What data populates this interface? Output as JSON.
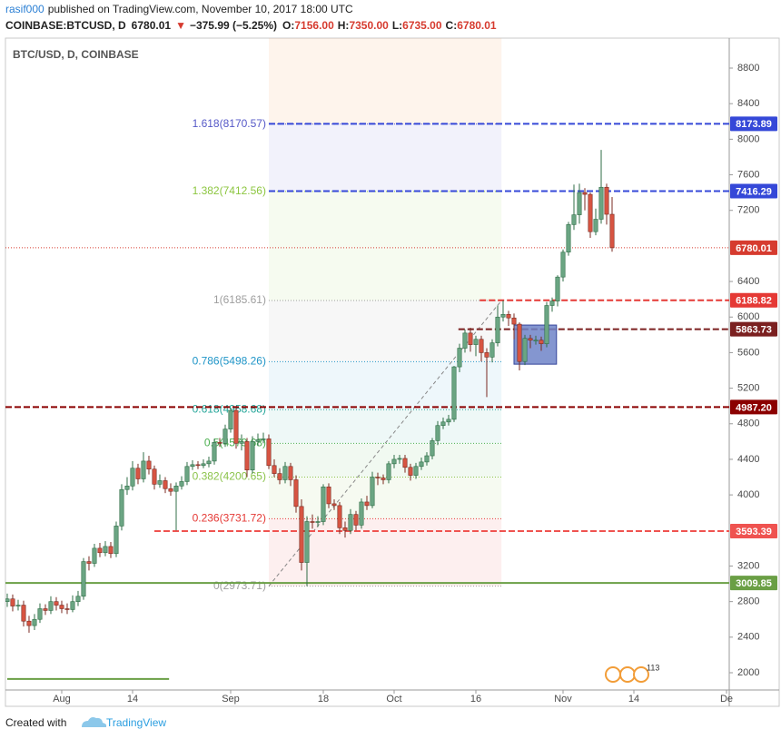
{
  "header": {
    "author": "rasif000",
    "published": "published on TradingView.com, November 10, 2017 18:00 UTC",
    "symbol": "COINBASE:BTCUSD, D",
    "last": "6780.01",
    "arrow": "▼",
    "change": "−375.99 (−5.25%)",
    "ohlc": [
      [
        "O:",
        "7156.00"
      ],
      [
        "H:",
        "7350.00"
      ],
      [
        "L:",
        "6735.00"
      ],
      [
        "C:",
        "6780.01"
      ]
    ]
  },
  "footer": {
    "created": "Created with",
    "brand": "TradingView"
  },
  "chart_data": {
    "type": "candlestick",
    "title": "BTC/USD, D, COINBASE",
    "up_color": "#6ba583",
    "down_color": "#d75442",
    "candles": {
      "open": [
        2800,
        2830,
        2750,
        2760,
        2580,
        2530,
        2600,
        2720,
        2700,
        2800,
        2760,
        2720,
        2710,
        2800,
        2860,
        3250,
        3230,
        3400,
        3350,
        3420,
        3340,
        3650,
        4060,
        4100,
        4300,
        4180,
        4380,
        4290,
        4120,
        4160,
        4070,
        4040,
        4100,
        4150,
        4320,
        4340,
        4330,
        4350,
        4380,
        4590,
        4580,
        4740,
        4950,
        4580,
        4600,
        4280,
        4600,
        4620,
        4630,
        4330,
        4240,
        4170,
        4320,
        4170,
        3870,
        3240,
        3700,
        3690,
        3700,
        4090,
        3900,
        3880,
        3630,
        3600,
        3780,
        3660,
        3920,
        3880,
        4200,
        4190,
        4170,
        4350,
        4400,
        4410,
        4310,
        4220,
        4320,
        4370,
        4440,
        4610,
        4780,
        4820,
        4850,
        5440,
        5650,
        5820,
        5690,
        5750,
        5600,
        5550,
        5710,
        6000,
        6030,
        5990,
        5920,
        5500,
        5760,
        5740,
        5740,
        5700,
        6130,
        6180,
        6450,
        6730,
        7040,
        7150,
        7400,
        7380,
        6960,
        7100,
        7460,
        7156
      ],
      "high": [
        2890,
        2880,
        2820,
        2810,
        2640,
        2660,
        2780,
        2770,
        2860,
        2850,
        2810,
        2780,
        2870,
        2920,
        3290,
        3310,
        3450,
        3460,
        3480,
        3470,
        3700,
        4120,
        4200,
        4380,
        4350,
        4480,
        4440,
        4330,
        4230,
        4200,
        4130,
        4140,
        4210,
        4370,
        4390,
        4380,
        4400,
        4430,
        4630,
        4640,
        4790,
        4980,
        4980,
        4680,
        4640,
        4660,
        4690,
        4700,
        4680,
        4400,
        4300,
        4370,
        4360,
        4220,
        3950,
        3760,
        3780,
        3760,
        4120,
        4130,
        3950,
        3920,
        3700,
        3840,
        3820,
        3960,
        3990,
        4260,
        4250,
        4230,
        4380,
        4450,
        4450,
        4450,
        4350,
        4360,
        4420,
        4480,
        4640,
        4830,
        4870,
        4900,
        5450,
        5700,
        5860,
        5880,
        5790,
        5790,
        5650,
        5750,
        6130,
        6185.61,
        6070,
        6040,
        5940,
        5800,
        5800,
        5790,
        5780,
        6170,
        6220,
        6470,
        6760,
        7070,
        7490,
        7500,
        7450,
        7400,
        7220,
        7880,
        7500,
        7350
      ],
      "low": [
        2740,
        2690,
        2700,
        2520,
        2450,
        2480,
        2560,
        2650,
        2660,
        2700,
        2670,
        2660,
        2680,
        2750,
        2820,
        3150,
        3190,
        3300,
        3310,
        3290,
        3300,
        3600,
        4000,
        4050,
        4120,
        4140,
        4230,
        4060,
        4080,
        4020,
        3990,
        3600,
        4060,
        4110,
        4280,
        4290,
        4300,
        4310,
        4340,
        4540,
        4540,
        4700,
        4520,
        4500,
        4200,
        4240,
        4550,
        4580,
        4290,
        4200,
        4120,
        4130,
        4100,
        3800,
        3150,
        2973.71,
        3620,
        3640,
        3660,
        3850,
        3830,
        3560,
        3520,
        3560,
        3600,
        3620,
        3830,
        3850,
        4110,
        4120,
        4130,
        4300,
        4350,
        4250,
        4160,
        4180,
        4280,
        4330,
        4400,
        4560,
        4740,
        4780,
        4820,
        5380,
        5600,
        5610,
        5560,
        5500,
        5100,
        5490,
        5670,
        5950,
        5900,
        5750,
        5400,
        5460,
        5650,
        5690,
        5620,
        5660,
        6060,
        6120,
        6400,
        6690,
        6980,
        7050,
        7200,
        6890,
        6920,
        7050,
        7040,
        6735
      ],
      "close": [
        2830,
        2750,
        2760,
        2580,
        2530,
        2600,
        2720,
        2700,
        2800,
        2760,
        2720,
        2710,
        2800,
        2860,
        3250,
        3230,
        3400,
        3350,
        3420,
        3340,
        3650,
        4060,
        4100,
        4300,
        4180,
        4380,
        4290,
        4120,
        4160,
        4070,
        4040,
        4100,
        4150,
        4320,
        4340,
        4330,
        4350,
        4380,
        4590,
        4580,
        4740,
        4950,
        4580,
        4600,
        4280,
        4600,
        4620,
        4630,
        4330,
        4240,
        4170,
        4320,
        4170,
        3870,
        3240,
        3700,
        3690,
        3700,
        4090,
        3900,
        3880,
        3630,
        3600,
        3780,
        3660,
        3920,
        3880,
        4200,
        4190,
        4170,
        4350,
        4400,
        4410,
        4310,
        4220,
        4320,
        4370,
        4440,
        4610,
        4780,
        4820,
        4850,
        5440,
        5650,
        5820,
        5690,
        5750,
        5600,
        5550,
        5710,
        6000,
        6030,
        5990,
        5920,
        5500,
        5760,
        5740,
        5740,
        5700,
        6130,
        6180,
        6450,
        6730,
        7040,
        7150,
        7400,
        7380,
        6960,
        7100,
        7460,
        7156,
        6780.01
      ]
    },
    "xlim": [
      -0.33,
      132.5
    ],
    "xticks": [
      {
        "value": 10,
        "label": "Aug"
      },
      {
        "value": 23,
        "label": "14"
      },
      {
        "value": 41,
        "label": "Sep"
      },
      {
        "value": 58,
        "label": "18"
      },
      {
        "value": 71,
        "label": "Oct"
      },
      {
        "value": 86,
        "label": "16"
      },
      {
        "value": 102,
        "label": "Nov"
      },
      {
        "value": 115,
        "label": "14"
      },
      {
        "value": 132,
        "label": "De"
      }
    ],
    "ylim": [
      1806,
      9137
    ],
    "yticks": [
      2000,
      2400,
      2800,
      3200,
      4000,
      4400,
      4800,
      5200,
      5600,
      6000,
      6400,
      7200,
      7600,
      8000,
      8400,
      8800
    ],
    "grid": false,
    "fib": {
      "from": 48,
      "to": 90.7,
      "levels": [
        {
          "value": 2973.71,
          "label": "0(2973.71)",
          "color": "#9e9e9e"
        },
        {
          "value": 3731.72,
          "label": "0.236(3731.72)",
          "color": "#e53935"
        },
        {
          "value": 4200.65,
          "label": "0.382(4200.65)",
          "color": "#8bc34a"
        },
        {
          "value": 4579.68,
          "label": "0.5(4579.68)",
          "color": "#4caf50"
        },
        {
          "value": 4958.68,
          "label": "0.618(4958.68)",
          "color": "#26a69a"
        },
        {
          "value": 5498.26,
          "label": "0.786(5498.26)",
          "color": "#2196c8"
        },
        {
          "value": 6185.61,
          "label": "1(6185.61)",
          "color": "#9e9e9e"
        },
        {
          "value": 7412.56,
          "label": "1.382(7412.56)",
          "color": "#8cc63f"
        },
        {
          "value": 8170.57,
          "label": "1.618(8170.57)",
          "color": "#5558c7"
        }
      ]
    },
    "price_lines": [
      {
        "value": 8173.89,
        "label": "8173.89",
        "color": "#3548d8",
        "style": "dashed",
        "from": 48
      },
      {
        "value": 7416.29,
        "label": "7416.29",
        "color": "#3548d8",
        "style": "dashed",
        "from": 48
      },
      {
        "value": 6780.01,
        "label": "6780.01",
        "color": "#d63b2f",
        "style": "dotted"
      },
      {
        "value": 6188.82,
        "label": "6188.82",
        "color": "#e53935",
        "style": "dashed",
        "from": 86.7
      },
      {
        "value": 5863.73,
        "label": "5863.73",
        "color": "#7b2020",
        "style": "dashed",
        "from": 82.8
      },
      {
        "value": 4987.2,
        "label": "4987.20",
        "color": "#8b0000",
        "style": "dashed"
      },
      {
        "value": 3593.39,
        "label": "3593.39",
        "color": "#ef5350",
        "style": "dashed",
        "from": 27
      },
      {
        "value": 3009.85,
        "label": "3009.85",
        "color": "#6a9f45",
        "style": "solid"
      },
      {
        "value": 1930,
        "color": "#6a9f45",
        "style": "solid",
        "from": 0,
        "to": 29.7
      }
    ],
    "box": {
      "from": 93,
      "to": 100.8,
      "top": 5910,
      "bottom": 5470,
      "color": "#6f84c8"
    },
    "event_badge": "113"
  }
}
